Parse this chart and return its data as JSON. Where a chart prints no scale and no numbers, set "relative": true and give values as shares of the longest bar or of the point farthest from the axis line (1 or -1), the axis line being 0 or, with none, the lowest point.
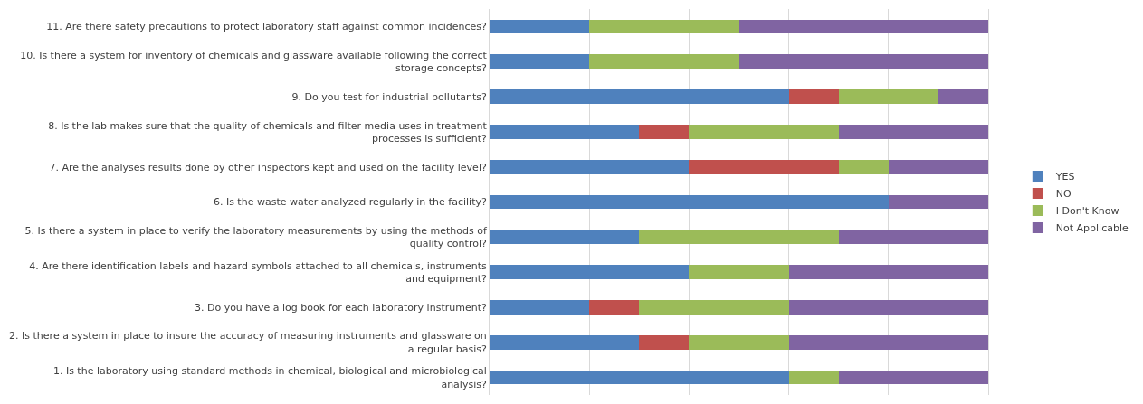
{
  "chart_data": {
    "type": "bar",
    "orientation": "horizontal",
    "stacked": true,
    "relative": true,
    "categories": [
      "11. Are there safety precautions to protect laboratory staff against common incidences?",
      "10. Is there a system for inventory of chemicals and glassware available following the correct storage concepts?",
      "9. Do you test for industrial pollutants?",
      "8. Is the lab makes sure that the quality of chemicals and filter media uses in treatment processes is sufficient?",
      "7. Are the analyses results done by other inspectors kept and used on the facility level?",
      "6. Is the waste water analyzed regularly in the facility?",
      "5. Is there a system in place to verify the laboratory measurements by using the methods of quality control?",
      "4. Are there identification labels and hazard symbols attached to all chemicals, instruments and equipment?",
      "3. Do you have a log book for each laboratory instrument?",
      "2. Is there a system in place to insure the accuracy of measuring instruments and glassware on a regular basis?",
      "1. Is the laboratory using standard methods in chemical, biological and microbiological analysis?"
    ],
    "series": [
      {
        "name": "YES",
        "color": "#4f81bd",
        "values": [
          0.2,
          0.2,
          0.6,
          0.3,
          0.4,
          0.8,
          0.3,
          0.4,
          0.2,
          0.3,
          0.6
        ]
      },
      {
        "name": "NO",
        "color": "#c0504d",
        "values": [
          0,
          0,
          0.1,
          0.1,
          0.3,
          0,
          0,
          0,
          0.1,
          0.1,
          0
        ]
      },
      {
        "name": "I Don't Know",
        "color": "#9bbb59",
        "values": [
          0.3,
          0.3,
          0.2,
          0.3,
          0.1,
          0,
          0.4,
          0.2,
          0.3,
          0.2,
          0.1
        ]
      },
      {
        "name": "Not Applicable",
        "color": "#8064a2",
        "values": [
          0.5,
          0.5,
          0.1,
          0.3,
          0.2,
          0.2,
          0.3,
          0.4,
          0.4,
          0.4,
          0.3
        ]
      }
    ],
    "grid": "x",
    "legend": "right"
  }
}
